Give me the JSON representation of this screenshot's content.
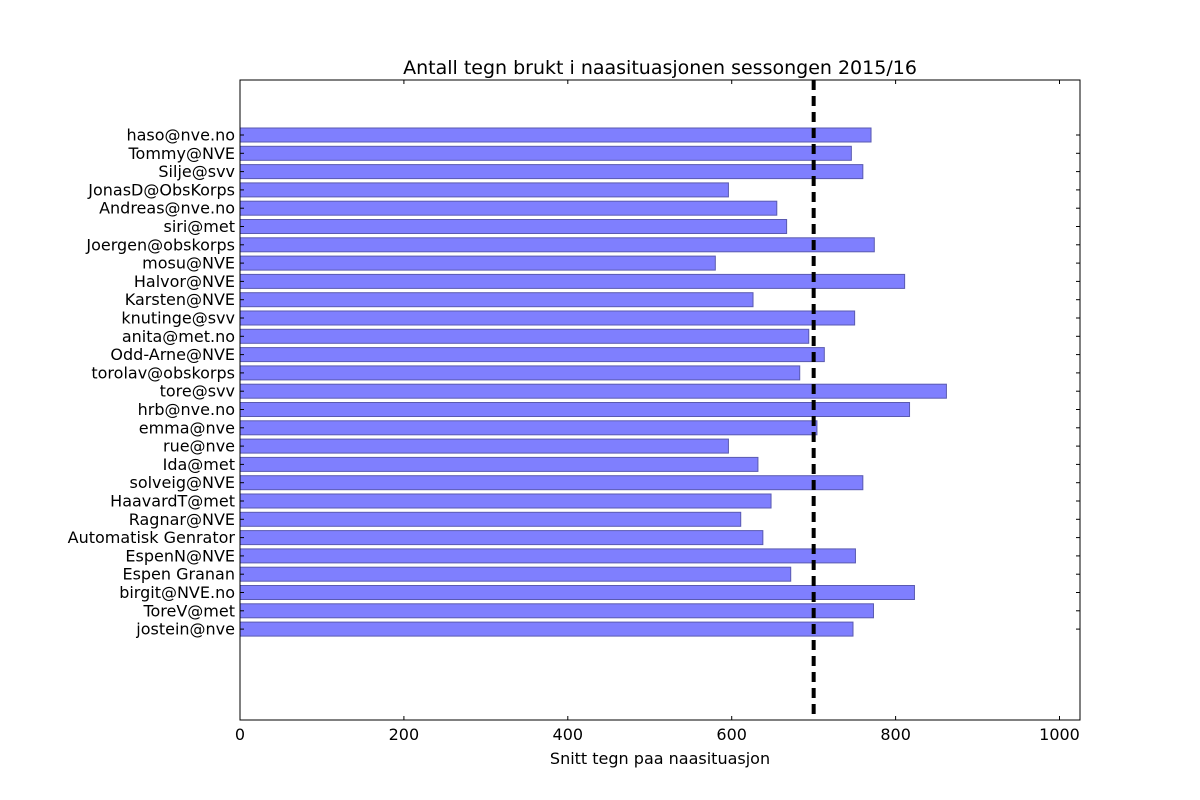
{
  "chart_data": {
    "type": "bar",
    "orientation": "horizontal",
    "title": "Antall tegn brukt i naasituasjonen sessongen 2015/16",
    "xlabel": "Snitt tegn paa naasituasjon",
    "ylabel": "",
    "xlim": [
      0,
      1025
    ],
    "x_ticks": [
      0,
      200,
      400,
      600,
      800,
      1000
    ],
    "bar_color": "#7f7ffe",
    "bar_edge_color": "#5a5ab0",
    "reference_line": {
      "value": 700,
      "style": "dashed",
      "color": "#000000"
    },
    "grid": false,
    "categories": [
      "haso@nve.no",
      "Tommy@NVE",
      "Silje@svv",
      "JonasD@ObsKorps",
      "Andreas@nve.no",
      "siri@met",
      "Joergen@obskorps",
      "mosu@NVE",
      "Halvor@NVE",
      "Karsten@NVE",
      "knutinge@svv",
      "anita@met.no",
      "Odd-Arne@NVE",
      "torolav@obskorps",
      "tore@svv",
      "hrb@nve.no",
      "emma@nve",
      "rue@nve",
      "Ida@met",
      "solveig@NVE",
      "HaavardT@met",
      "Ragnar@NVE",
      "Automatisk Genrator",
      "EspenN@NVE",
      "Espen Granan",
      "birgit@NVE.no",
      "ToreV@met",
      "jostein@nve"
    ],
    "values": [
      770,
      746,
      760,
      596,
      655,
      667,
      774,
      580,
      811,
      626,
      750,
      694,
      713,
      683,
      862,
      817,
      704,
      596,
      632,
      760,
      648,
      611,
      638,
      751,
      672,
      823,
      773,
      748
    ]
  }
}
